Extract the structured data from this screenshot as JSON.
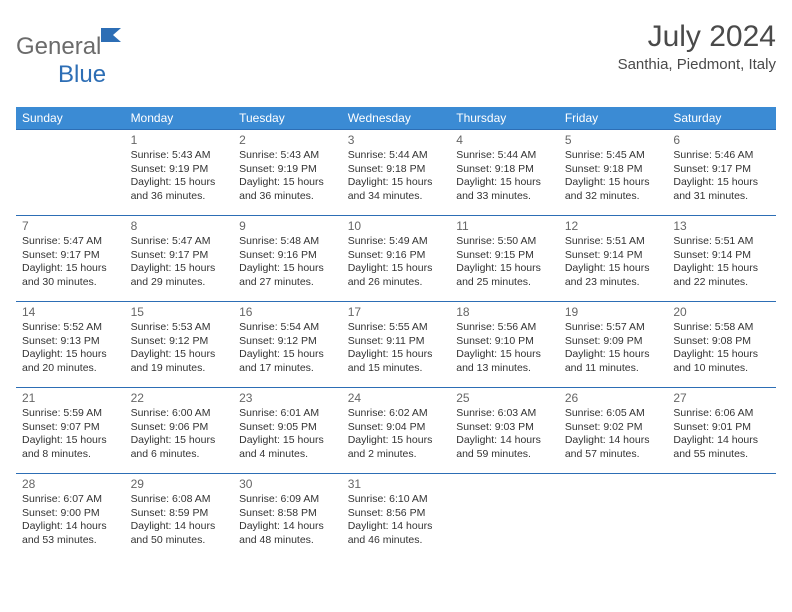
{
  "logo": {
    "part1": "General",
    "part2": "Blue"
  },
  "title": "July 2024",
  "location": "Santhia, Piedmont, Italy",
  "colors": {
    "header_bg": "#3b8bd4",
    "header_text": "#ffffff",
    "border": "#2d6eb5",
    "logo_gray": "#6b6b6b",
    "logo_blue": "#2d6eb5",
    "title_color": "#4a4a4a",
    "daynum_color": "#666666",
    "text_color": "#333333",
    "background": "#ffffff"
  },
  "typography": {
    "month_title_fontsize": 30,
    "location_fontsize": 15,
    "header_fontsize": 12,
    "daynum_fontsize": 12,
    "dayinfo_fontsize": 10.5
  },
  "day_names": [
    "Sunday",
    "Monday",
    "Tuesday",
    "Wednesday",
    "Thursday",
    "Friday",
    "Saturday"
  ],
  "weeks": [
    [
      null,
      {
        "num": "1",
        "sunrise": "5:43 AM",
        "sunset": "9:19 PM",
        "daylight": "15 hours and 36 minutes."
      },
      {
        "num": "2",
        "sunrise": "5:43 AM",
        "sunset": "9:19 PM",
        "daylight": "15 hours and 36 minutes."
      },
      {
        "num": "3",
        "sunrise": "5:44 AM",
        "sunset": "9:18 PM",
        "daylight": "15 hours and 34 minutes."
      },
      {
        "num": "4",
        "sunrise": "5:44 AM",
        "sunset": "9:18 PM",
        "daylight": "15 hours and 33 minutes."
      },
      {
        "num": "5",
        "sunrise": "5:45 AM",
        "sunset": "9:18 PM",
        "daylight": "15 hours and 32 minutes."
      },
      {
        "num": "6",
        "sunrise": "5:46 AM",
        "sunset": "9:17 PM",
        "daylight": "15 hours and 31 minutes."
      }
    ],
    [
      {
        "num": "7",
        "sunrise": "5:47 AM",
        "sunset": "9:17 PM",
        "daylight": "15 hours and 30 minutes."
      },
      {
        "num": "8",
        "sunrise": "5:47 AM",
        "sunset": "9:17 PM",
        "daylight": "15 hours and 29 minutes."
      },
      {
        "num": "9",
        "sunrise": "5:48 AM",
        "sunset": "9:16 PM",
        "daylight": "15 hours and 27 minutes."
      },
      {
        "num": "10",
        "sunrise": "5:49 AM",
        "sunset": "9:16 PM",
        "daylight": "15 hours and 26 minutes."
      },
      {
        "num": "11",
        "sunrise": "5:50 AM",
        "sunset": "9:15 PM",
        "daylight": "15 hours and 25 minutes."
      },
      {
        "num": "12",
        "sunrise": "5:51 AM",
        "sunset": "9:14 PM",
        "daylight": "15 hours and 23 minutes."
      },
      {
        "num": "13",
        "sunrise": "5:51 AM",
        "sunset": "9:14 PM",
        "daylight": "15 hours and 22 minutes."
      }
    ],
    [
      {
        "num": "14",
        "sunrise": "5:52 AM",
        "sunset": "9:13 PM",
        "daylight": "15 hours and 20 minutes."
      },
      {
        "num": "15",
        "sunrise": "5:53 AM",
        "sunset": "9:12 PM",
        "daylight": "15 hours and 19 minutes."
      },
      {
        "num": "16",
        "sunrise": "5:54 AM",
        "sunset": "9:12 PM",
        "daylight": "15 hours and 17 minutes."
      },
      {
        "num": "17",
        "sunrise": "5:55 AM",
        "sunset": "9:11 PM",
        "daylight": "15 hours and 15 minutes."
      },
      {
        "num": "18",
        "sunrise": "5:56 AM",
        "sunset": "9:10 PM",
        "daylight": "15 hours and 13 minutes."
      },
      {
        "num": "19",
        "sunrise": "5:57 AM",
        "sunset": "9:09 PM",
        "daylight": "15 hours and 11 minutes."
      },
      {
        "num": "20",
        "sunrise": "5:58 AM",
        "sunset": "9:08 PM",
        "daylight": "15 hours and 10 minutes."
      }
    ],
    [
      {
        "num": "21",
        "sunrise": "5:59 AM",
        "sunset": "9:07 PM",
        "daylight": "15 hours and 8 minutes."
      },
      {
        "num": "22",
        "sunrise": "6:00 AM",
        "sunset": "9:06 PM",
        "daylight": "15 hours and 6 minutes."
      },
      {
        "num": "23",
        "sunrise": "6:01 AM",
        "sunset": "9:05 PM",
        "daylight": "15 hours and 4 minutes."
      },
      {
        "num": "24",
        "sunrise": "6:02 AM",
        "sunset": "9:04 PM",
        "daylight": "15 hours and 2 minutes."
      },
      {
        "num": "25",
        "sunrise": "6:03 AM",
        "sunset": "9:03 PM",
        "daylight": "14 hours and 59 minutes."
      },
      {
        "num": "26",
        "sunrise": "6:05 AM",
        "sunset": "9:02 PM",
        "daylight": "14 hours and 57 minutes."
      },
      {
        "num": "27",
        "sunrise": "6:06 AM",
        "sunset": "9:01 PM",
        "daylight": "14 hours and 55 minutes."
      }
    ],
    [
      {
        "num": "28",
        "sunrise": "6:07 AM",
        "sunset": "9:00 PM",
        "daylight": "14 hours and 53 minutes."
      },
      {
        "num": "29",
        "sunrise": "6:08 AM",
        "sunset": "8:59 PM",
        "daylight": "14 hours and 50 minutes."
      },
      {
        "num": "30",
        "sunrise": "6:09 AM",
        "sunset": "8:58 PM",
        "daylight": "14 hours and 48 minutes."
      },
      {
        "num": "31",
        "sunrise": "6:10 AM",
        "sunset": "8:56 PM",
        "daylight": "14 hours and 46 minutes."
      },
      null,
      null,
      null
    ]
  ],
  "labels": {
    "sunrise_prefix": "Sunrise: ",
    "sunset_prefix": "Sunset: ",
    "daylight_prefix": "Daylight: "
  }
}
